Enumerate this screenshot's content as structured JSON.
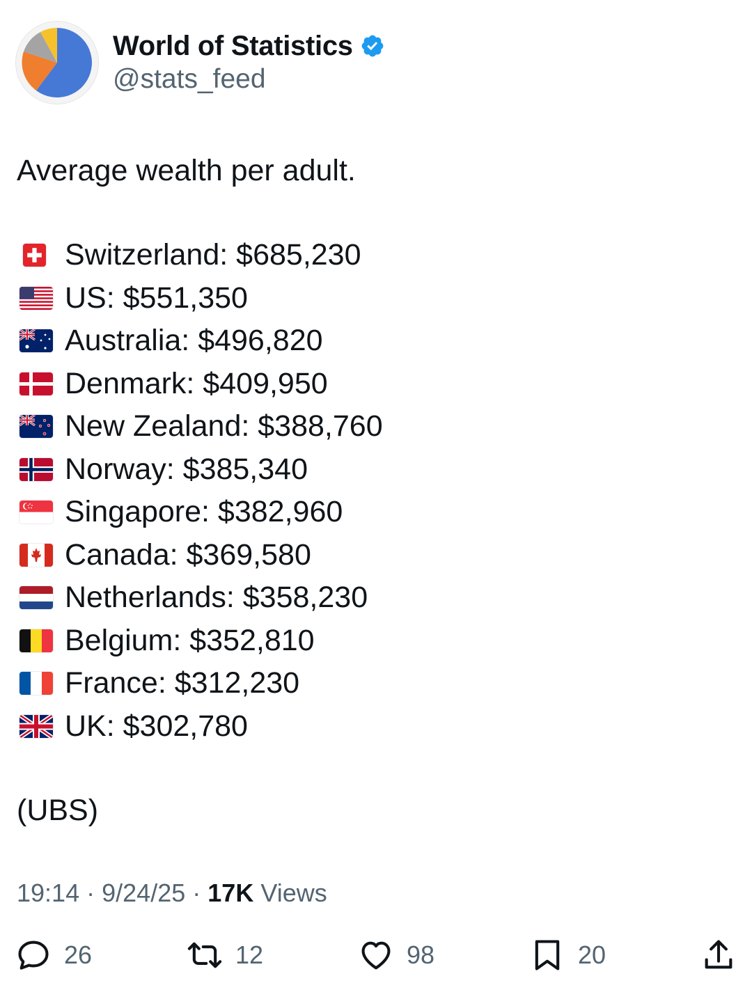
{
  "author": {
    "display_name": "World of Statistics",
    "handle": "@stats_feed",
    "avatar_icon": "pie-chart-avatar",
    "verified_icon": "verified-badge-icon",
    "verified_color": "#1d9bf0"
  },
  "post": {
    "intro": "Average wealth per adult.",
    "items": [
      {
        "flag": "switzerland-flag-icon",
        "text": "Switzerland: $685,230"
      },
      {
        "flag": "us-flag-icon",
        "text": "US: $551,350"
      },
      {
        "flag": "australia-flag-icon",
        "text": "Australia: $496,820"
      },
      {
        "flag": "denmark-flag-icon",
        "text": "Denmark: $409,950"
      },
      {
        "flag": "new-zealand-flag-icon",
        "text": "New Zealand: $388,760"
      },
      {
        "flag": "norway-flag-icon",
        "text": "Norway: $385,340"
      },
      {
        "flag": "singapore-flag-icon",
        "text": "Singapore: $382,960"
      },
      {
        "flag": "canada-flag-icon",
        "text": "Canada: $369,580"
      },
      {
        "flag": "netherlands-flag-icon",
        "text": "Netherlands: $358,230"
      },
      {
        "flag": "belgium-flag-icon",
        "text": "Belgium: $352,810"
      },
      {
        "flag": "france-flag-icon",
        "text": "France: $312,230"
      },
      {
        "flag": "uk-flag-icon",
        "text": "UK: $302,780"
      }
    ],
    "source": "(UBS)"
  },
  "meta": {
    "time": "19:14",
    "separator": "·",
    "date": "9/24/25",
    "views_count": "17K",
    "views_label": "Views"
  },
  "actions": {
    "replies": "26",
    "reposts": "12",
    "likes": "98",
    "bookmarks": "20",
    "reply_icon": "reply-icon",
    "repost_icon": "repost-icon",
    "like_icon": "heart-icon",
    "bookmark_icon": "bookmark-icon",
    "share_icon": "share-icon"
  },
  "colors": {
    "text": "#0f1419",
    "secondary": "#536471"
  }
}
